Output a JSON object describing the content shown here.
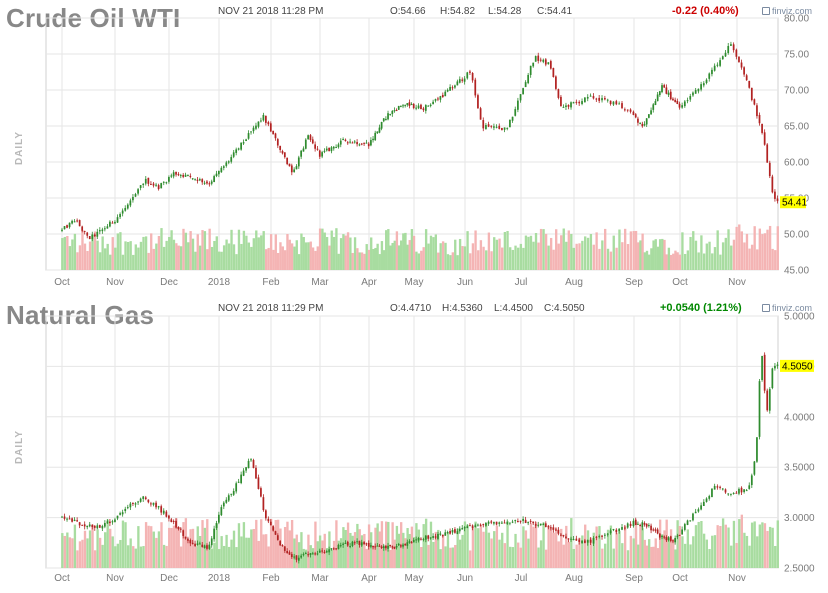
{
  "panels": [
    {
      "title": "Crude Oil WTI",
      "datetime": "NOV 21 2018 11:28 PM",
      "ohlc": {
        "open": "O:54.66",
        "high": "H:54.82",
        "low": "L:54.28",
        "close": "C:54.41"
      },
      "change": "-0.22 (0.40%)",
      "change_color": "#cc0000",
      "brand": "finviz.com",
      "period_label": "DAILY",
      "last_price_label": "54.41"
    },
    {
      "title": "Natural Gas",
      "datetime": "NOV 21 2018 11:29 PM",
      "ohlc": {
        "open": "O:4.4710",
        "high": "H:4.5360",
        "low": "L:4.4500",
        "close": "C:4.5050"
      },
      "change": "+0.0540 (1.21%)",
      "change_color": "#008800",
      "brand": "finviz.com",
      "period_label": "DAILY",
      "last_price_label": "4.5050"
    }
  ],
  "colors": {
    "up": "#2e8b2e",
    "down": "#b22222",
    "vol_up": "#a8dca0",
    "vol_down": "#f4b4b4",
    "grid": "#e6e6e6",
    "axis_text": "#7a7a7a",
    "highlight": "#ffff00"
  },
  "chart_data": [
    {
      "type": "line",
      "subtype": "candlestick",
      "title": "Crude Oil WTI",
      "ylabel": "DAILY",
      "x_tick_labels": [
        "Oct",
        "Nov",
        "Dec",
        "2018",
        "Feb",
        "Mar",
        "Apr",
        "May",
        "Jun",
        "Jul",
        "Aug",
        "Sep",
        "Oct",
        "Nov"
      ],
      "y_ticks": [
        45,
        50,
        55,
        60,
        65,
        70,
        75,
        80
      ],
      "y_tick_labels": [
        "45.00",
        "50.00",
        "55.00",
        "60.00",
        "65.00",
        "70.00",
        "75.00",
        "80.00"
      ],
      "ylim": [
        45,
        80
      ],
      "last_value": 54.41,
      "grid": true,
      "volume_bars": true,
      "x_month_index": [
        0,
        1,
        2,
        3,
        4,
        5,
        6,
        7,
        8,
        9,
        10,
        11,
        12,
        13,
        13.7
      ],
      "series": [
        {
          "name": "Crude Oil WTI",
          "values": [
            50.5,
            52.0,
            49.3,
            50.5,
            52.0,
            54.5,
            57.5,
            56.5,
            58.5,
            57.8,
            57.0,
            60.3,
            64.0,
            66.3,
            61.0,
            58.5,
            63.5,
            61.0,
            63.0,
            62.5,
            66.5,
            68.0,
            67.5,
            69.5,
            72.5,
            65.0,
            64.5,
            74.5,
            73.5,
            67.5,
            69.0,
            68.0,
            65.0,
            70.5,
            67.5,
            72.0,
            76.5,
            72.0,
            67.0,
            63.0,
            56.0,
            54.41
          ],
          "x": [
            0,
            0.25,
            0.5,
            0.75,
            1.0,
            1.3,
            1.55,
            1.8,
            2.1,
            2.5,
            2.8,
            3.2,
            3.6,
            3.85,
            4.25,
            4.45,
            4.75,
            5.0,
            5.5,
            6.0,
            6.4,
            6.75,
            7.2,
            7.6,
            8.1,
            8.3,
            8.75,
            9.25,
            9.55,
            9.75,
            10.3,
            10.75,
            11.2,
            11.6,
            12.0,
            12.5,
            12.9,
            13.15,
            13.35,
            13.5,
            13.65,
            13.75
          ]
        }
      ]
    },
    {
      "type": "line",
      "subtype": "candlestick",
      "title": "Natural Gas",
      "ylabel": "DAILY",
      "x_tick_labels": [
        "Oct",
        "Nov",
        "Dec",
        "2018",
        "Feb",
        "Mar",
        "Apr",
        "May",
        "Jun",
        "Jul",
        "Aug",
        "Sep",
        "Oct",
        "Nov"
      ],
      "y_ticks": [
        2.5,
        3.0,
        3.5,
        4.0,
        4.5,
        5.0
      ],
      "y_tick_labels": [
        "2.5000",
        "3.0000",
        "3.5000",
        "4.0000",
        "4.5000",
        "5.0000"
      ],
      "ylim": [
        2.5,
        5.0
      ],
      "last_value": 4.505,
      "grid": true,
      "volume_bars": true,
      "series": [
        {
          "name": "Natural Gas",
          "values": [
            3.0,
            2.95,
            2.9,
            2.95,
            3.1,
            3.2,
            3.1,
            2.95,
            2.75,
            2.7,
            3.05,
            3.3,
            3.6,
            3.0,
            2.72,
            2.6,
            2.65,
            2.7,
            2.75,
            2.72,
            2.7,
            2.78,
            2.82,
            2.9,
            2.95,
            2.98,
            2.92,
            2.82,
            2.75,
            2.85,
            2.95,
            2.92,
            2.8,
            2.78,
            3.0,
            3.3,
            3.25,
            3.28,
            3.6,
            4.7,
            4.0,
            4.5,
            4.505
          ],
          "x": [
            0,
            0.3,
            0.6,
            0.9,
            1.2,
            1.5,
            1.8,
            2.1,
            2.4,
            2.8,
            3.0,
            3.3,
            3.6,
            3.9,
            4.2,
            4.5,
            4.9,
            5.3,
            5.7,
            6.1,
            6.5,
            7.0,
            7.5,
            8.0,
            8.5,
            9.0,
            9.4,
            9.8,
            10.2,
            10.6,
            11.0,
            11.3,
            11.6,
            11.9,
            12.2,
            12.6,
            12.9,
            13.2,
            13.35,
            13.45,
            13.55,
            13.65,
            13.75
          ]
        }
      ]
    }
  ]
}
